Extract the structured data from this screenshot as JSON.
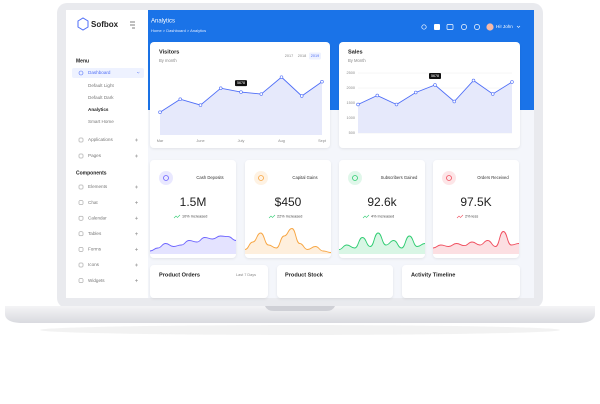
{
  "brand": "Sofbox",
  "page_title": "Analytics",
  "breadcrumb": "Home > Dashboard > Analytics",
  "user": "Hi! John",
  "sidebar": {
    "menu_heading": "Menu",
    "dashboard": "Dashboard",
    "dashboard_items": [
      "Default Light",
      "Default Dark",
      "Analytics",
      "Smart Home"
    ],
    "items_a": [
      "Applications",
      "Pages"
    ],
    "components_heading": "Components",
    "items_b": [
      "Elements",
      "Chat",
      "Calendar",
      "Tables",
      "Forms",
      "Icons",
      "Widgets"
    ]
  },
  "visitors": {
    "type": "line",
    "title": "Visitors",
    "subtitle": "By month",
    "tabs": [
      "2017",
      "2018",
      "2019"
    ],
    "categories": [
      "Mar",
      null,
      "June",
      null,
      "July",
      null,
      "Aug",
      null,
      "Sept"
    ],
    "values": [
      35,
      55,
      46,
      72,
      66,
      63,
      89,
      60,
      82
    ],
    "tooltip": "5678",
    "color": "#4f6ef7",
    "ylim": [
      0,
      100
    ]
  },
  "sales": {
    "type": "line",
    "title": "Sales",
    "subtitle": "By Month",
    "values": [
      1450,
      1750,
      1450,
      1850,
      2100,
      1550,
      2250,
      1800,
      2200
    ],
    "tooltip": "5678",
    "color": "#4f6ef7",
    "ylim": [
      500,
      2500
    ],
    "yticks": [
      500,
      1000,
      1500,
      2000,
      2500
    ]
  },
  "stats": {
    "spark_ylim": [
      0,
      100
    ],
    "cards": [
      {
        "label": "Cash Deposits",
        "value": "1.5M",
        "change": "10% Increased",
        "color": "#6c63ff",
        "spark": [
          10,
          20,
          35,
          25,
          30,
          45,
          40,
          55,
          50,
          60,
          58,
          45
        ]
      },
      {
        "label": "Capital Gains",
        "value": "$450",
        "change": "22% Increased",
        "color": "#f7a541",
        "spark": [
          15,
          40,
          70,
          30,
          20,
          60,
          85,
          35,
          15,
          25,
          10,
          5
        ]
      },
      {
        "label": "Subscribers Gained",
        "value": "92.6k",
        "change": "4% Increased",
        "color": "#2ecc71",
        "spark": [
          15,
          30,
          20,
          55,
          25,
          70,
          30,
          45,
          20,
          60,
          25,
          35
        ]
      },
      {
        "label": "Orders Received",
        "value": "97.5K",
        "change": "2% less",
        "color": "#f04e5e",
        "spark": [
          20,
          30,
          25,
          35,
          28,
          40,
          30,
          45,
          25,
          75,
          30,
          35
        ]
      }
    ]
  },
  "bottom": {
    "orders": "Product Orders",
    "orders_filter": "Last 7 Days",
    "stock": "Product Stock",
    "timeline": "Activity Timeline"
  }
}
